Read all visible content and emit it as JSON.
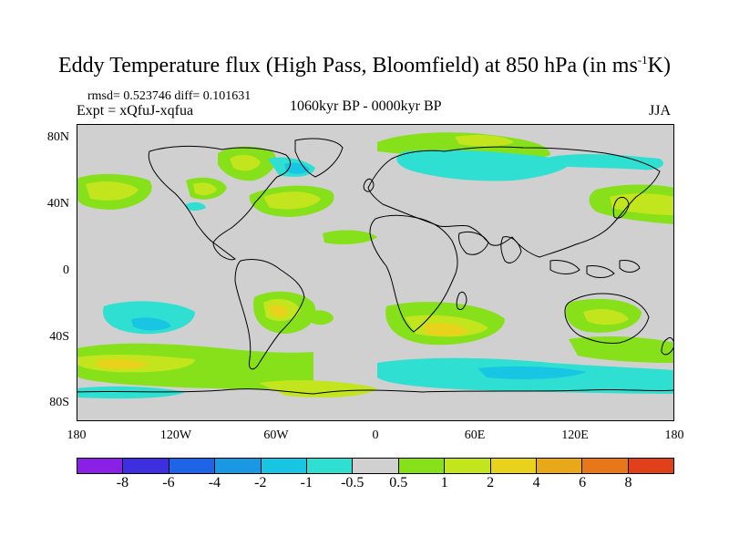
{
  "title": {
    "prefix": "Eddy Temperature flux (High Pass, Bloomfield) at 850 hPa (in ms",
    "sup": "-1",
    "suffix": "K)"
  },
  "stats": "rmsd= 0.523746 diff= 0.101631",
  "expt": "Expt = xQfuJ-xqfua",
  "period": "1060kyr BP - 0000kyr BP",
  "season": "JJA",
  "lat_labels": [
    "80N",
    "40N",
    "0",
    "40S",
    "80S"
  ],
  "lon_labels": [
    "180",
    "120W",
    "60W",
    "0",
    "60E",
    "120E",
    "180"
  ],
  "colorbar": {
    "labels": [
      "-8",
      "-6",
      "-4",
      "-2",
      "-1",
      "-0.5",
      "0.5",
      "1",
      "2",
      "4",
      "6",
      "8"
    ],
    "colors": [
      "#8a1fe6",
      "#3d2fe0",
      "#1e64e6",
      "#1a98e3",
      "#18c6e4",
      "#2fe0d2",
      "#d0d0d0",
      "#86e01a",
      "#c2e51d",
      "#e8d21b",
      "#e8a81a",
      "#e8761a",
      "#e0401a"
    ]
  },
  "colors": {
    "land_bg": "#d0d0d0",
    "pos_weak": "#86e01a",
    "pos_mid": "#c2e51d",
    "pos_strong": "#e8d21b",
    "neg_weak": "#2fe0d2",
    "neg_mid": "#18c6e4",
    "neg_strong": "#1a98e3"
  }
}
